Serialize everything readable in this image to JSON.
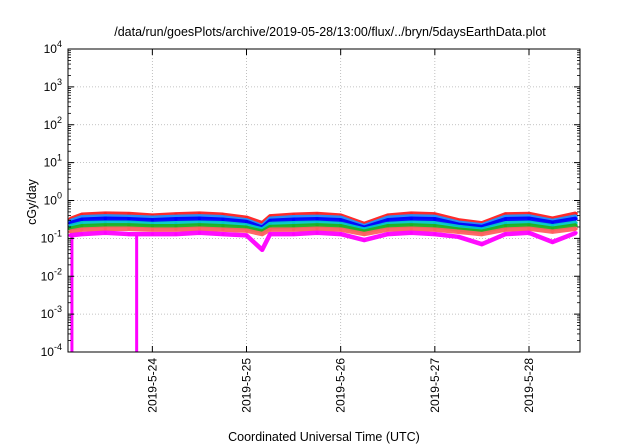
{
  "chart_data": {
    "type": "line",
    "title": "/data/run/goesPlots/archive/2019-05-28/13:00/flux/../bryn/5daysEarthData.plot",
    "xlabel": "Coordinated Universal Time (UTC)",
    "ylabel": "cGy/day",
    "yscale": "log",
    "ylim": [
      0.0001,
      10000
    ],
    "xlim": [
      "2019-05-23 02:30",
      "2019-05-28 13:00"
    ],
    "x_ticks": [
      "2019-5-24",
      "2019-5-25",
      "2019-5-26",
      "2019-5-27",
      "2019-5-28"
    ],
    "y_ticks": [
      {
        "base": "10",
        "exp": "-4"
      },
      {
        "base": "10",
        "exp": "-3"
      },
      {
        "base": "10",
        "exp": "-2"
      },
      {
        "base": "10",
        "exp": "-1"
      },
      {
        "base": "10",
        "exp": "0"
      },
      {
        "base": "10",
        "exp": "1"
      },
      {
        "base": "10",
        "exp": "2"
      },
      {
        "base": "10",
        "exp": "3"
      },
      {
        "base": "10",
        "exp": "4"
      }
    ],
    "grid": true,
    "legend": "none",
    "x": [
      "2019-05-23 03:00",
      "2019-05-23 06:00",
      "2019-05-23 12:00",
      "2019-05-23 18:00",
      "2019-05-24 00:00",
      "2019-05-24 06:00",
      "2019-05-24 12:00",
      "2019-05-24 18:00",
      "2019-05-25 00:00",
      "2019-05-25 04:00",
      "2019-05-25 06:00",
      "2019-05-25 12:00",
      "2019-05-25 18:00",
      "2019-05-26 00:00",
      "2019-05-26 06:00",
      "2019-05-26 12:00",
      "2019-05-26 18:00",
      "2019-05-27 00:00",
      "2019-05-27 06:00",
      "2019-05-27 12:00",
      "2019-05-27 18:00",
      "2019-05-28 00:00",
      "2019-05-28 06:00",
      "2019-05-28 12:00"
    ],
    "series": [
      {
        "color": "#ff2020",
        "values": [
          0.32,
          0.42,
          0.45,
          0.44,
          0.4,
          0.43,
          0.45,
          0.42,
          0.35,
          0.25,
          0.38,
          0.42,
          0.44,
          0.4,
          0.24,
          0.4,
          0.45,
          0.43,
          0.3,
          0.25,
          0.43,
          0.44,
          0.33,
          0.45
        ]
      },
      {
        "color": "#1e90ff",
        "values": [
          0.28,
          0.36,
          0.38,
          0.37,
          0.35,
          0.37,
          0.38,
          0.36,
          0.3,
          0.21,
          0.33,
          0.36,
          0.37,
          0.35,
          0.21,
          0.35,
          0.38,
          0.37,
          0.26,
          0.22,
          0.37,
          0.38,
          0.29,
          0.38
        ]
      },
      {
        "color": "#0000ff",
        "values": [
          0.25,
          0.31,
          0.33,
          0.32,
          0.3,
          0.32,
          0.33,
          0.31,
          0.27,
          0.19,
          0.29,
          0.31,
          0.32,
          0.3,
          0.19,
          0.3,
          0.33,
          0.32,
          0.23,
          0.2,
          0.32,
          0.33,
          0.26,
          0.33
        ]
      },
      {
        "color": "#00c8c8",
        "values": [
          0.21,
          0.25,
          0.26,
          0.26,
          0.24,
          0.25,
          0.26,
          0.25,
          0.22,
          0.17,
          0.24,
          0.25,
          0.26,
          0.24,
          0.17,
          0.24,
          0.26,
          0.25,
          0.2,
          0.17,
          0.25,
          0.26,
          0.21,
          0.26
        ]
      },
      {
        "color": "#20b020",
        "values": [
          0.18,
          0.21,
          0.22,
          0.22,
          0.21,
          0.21,
          0.22,
          0.21,
          0.19,
          0.15,
          0.2,
          0.21,
          0.22,
          0.21,
          0.15,
          0.21,
          0.22,
          0.21,
          0.17,
          0.15,
          0.21,
          0.22,
          0.18,
          0.22
        ]
      },
      {
        "color": "#ff6060",
        "values": [
          0.15,
          0.17,
          0.18,
          0.18,
          0.17,
          0.17,
          0.18,
          0.17,
          0.16,
          0.13,
          0.17,
          0.17,
          0.18,
          0.17,
          0.13,
          0.17,
          0.18,
          0.17,
          0.15,
          0.13,
          0.17,
          0.18,
          0.15,
          0.18
        ]
      },
      {
        "color": "#ff00ff",
        "values": [
          0.12,
          0.13,
          0.14,
          0.13,
          0.13,
          0.13,
          0.14,
          0.13,
          0.12,
          0.05,
          0.13,
          0.13,
          0.14,
          0.13,
          0.09,
          0.13,
          0.14,
          0.13,
          0.11,
          0.07,
          0.13,
          0.14,
          0.08,
          0.14
        ]
      }
    ],
    "dropouts": [
      {
        "x": "2019-05-23 03:30",
        "y": 0.0001
      },
      {
        "x": "2019-05-23 20:00",
        "y": 0.0001
      }
    ]
  }
}
